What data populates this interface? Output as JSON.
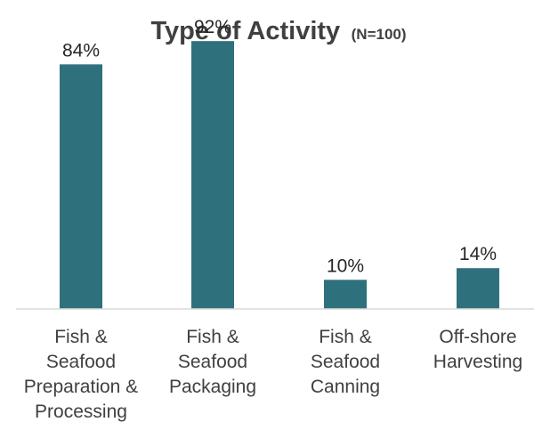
{
  "chart_data": {
    "type": "bar",
    "title": "Type of Activity",
    "subtitle": "(N=100)",
    "categories": [
      [
        "Fish &",
        "Seafood",
        "Preparation &",
        "Processing"
      ],
      [
        "Fish &",
        "Seafood",
        "Packaging"
      ],
      [
        "Fish &",
        "Seafood",
        "Canning"
      ],
      [
        "Off-shore",
        "Harvesting"
      ]
    ],
    "values": [
      84,
      92,
      10,
      14
    ],
    "data_labels": [
      "84%",
      "92%",
      "10%",
      "14%"
    ],
    "ylim": [
      0,
      100
    ],
    "xlabel": "",
    "ylabel": "",
    "grid": false,
    "legend": "none",
    "colors": {
      "bar": "#2E717C",
      "axis": "#D9D9D9",
      "title": "#404040",
      "text": "#404040"
    }
  }
}
